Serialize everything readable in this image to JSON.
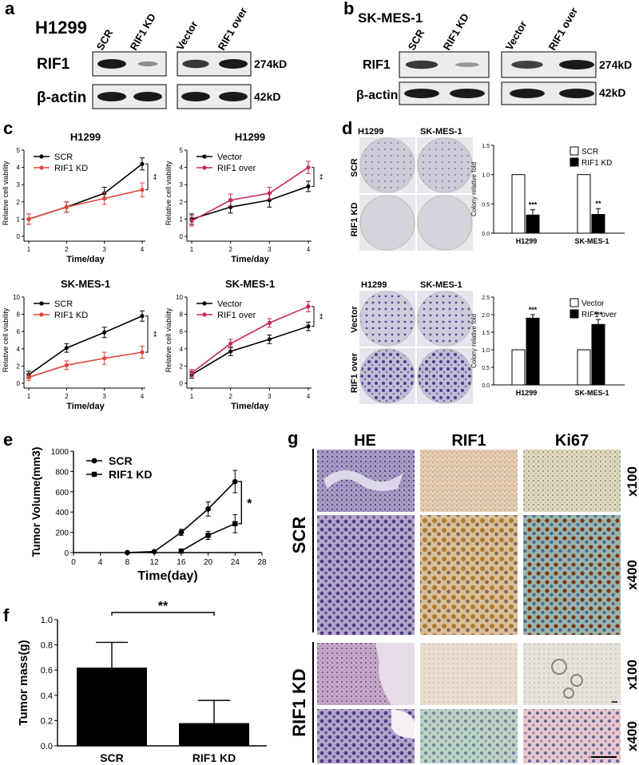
{
  "colors": {
    "black": "#000000",
    "red": "#e0463a",
    "magenta": "#c8265a",
    "blot": "#1a1a1a"
  },
  "panel_a": {
    "letter": "a",
    "cell_line": "H1299",
    "lanes": [
      "SCR",
      "RIF1 KD",
      "Vector",
      "RIF1 over"
    ],
    "rows": [
      "RIF1",
      "β-actin"
    ],
    "sizes": [
      "274kD",
      "42kD"
    ],
    "rif1_band": [
      1.0,
      0.25,
      0.8,
      1.0
    ],
    "actin_band": [
      1.0,
      1.0,
      1.0,
      1.0
    ]
  },
  "panel_b": {
    "letter": "b",
    "cell_line": "SK-MES-1",
    "lanes": [
      "SCR",
      "RIF1 KD",
      "Vector",
      "RIF1 over"
    ],
    "rows": [
      "RIF1",
      "β-actin"
    ],
    "sizes": [
      "274kD",
      "42kD"
    ],
    "rif1_band": [
      0.8,
      0.2,
      0.75,
      1.0
    ],
    "actin_band": [
      1.0,
      1.0,
      1.0,
      1.0
    ]
  },
  "panel_c": {
    "letter": "c"
  },
  "panel_d": {
    "letter": "d",
    "kd_cols": [
      "H1299",
      "SK-MES-1"
    ],
    "kd_rows": [
      "SCR",
      "RIF1 KD"
    ],
    "over_cols": [
      "H1299",
      "SK-MES-1"
    ],
    "over_rows": [
      "Vector",
      "RIF1 over"
    ]
  },
  "panel_e": {
    "letter": "e"
  },
  "panel_f": {
    "letter": "f"
  },
  "panel_g": {
    "letter": "g",
    "columns": [
      "HE",
      "RIF1",
      "Ki67"
    ],
    "groups": [
      "SCR",
      "RIF1 KD"
    ],
    "magnifications": [
      "x100",
      "x400",
      "x100",
      "x400"
    ]
  },
  "chart_data": [
    {
      "id": "c1",
      "type": "line",
      "title": "H1299",
      "xlabel": "Time/day",
      "ylabel": "Relative cell viability",
      "x": [
        1,
        2,
        3,
        4
      ],
      "xlim": [
        1,
        4
      ],
      "ylim": [
        0,
        5
      ],
      "yticks": [
        0,
        1,
        2,
        3,
        4,
        5
      ],
      "series": [
        {
          "name": "SCR",
          "color": "#000000",
          "values": [
            1.0,
            1.7,
            2.5,
            4.2
          ],
          "err": [
            0.3,
            0.3,
            0.35,
            0.35
          ]
        },
        {
          "name": "RIF1 KD",
          "color": "#e0463a",
          "values": [
            1.0,
            1.7,
            2.2,
            2.7
          ],
          "err": [
            0.3,
            0.3,
            0.35,
            0.4
          ]
        }
      ],
      "annotation": "**"
    },
    {
      "id": "c2",
      "type": "line",
      "title": "H1299",
      "xlabel": "Time/day",
      "ylabel": "Relative cell viability",
      "x": [
        1,
        2,
        3,
        4
      ],
      "xlim": [
        1,
        4
      ],
      "ylim": [
        0,
        5
      ],
      "yticks": [
        0,
        1,
        2,
        3,
        4,
        5
      ],
      "series": [
        {
          "name": "Vector",
          "color": "#000000",
          "values": [
            1.0,
            1.7,
            2.1,
            2.9
          ],
          "err": [
            0.3,
            0.35,
            0.4,
            0.3
          ]
        },
        {
          "name": "RIF1 over",
          "color": "#c8265a",
          "values": [
            0.9,
            2.1,
            2.5,
            4.0
          ],
          "err": [
            0.3,
            0.35,
            0.35,
            0.35
          ]
        }
      ],
      "annotation": "**"
    },
    {
      "id": "c3",
      "type": "line",
      "title": "SK-MES-1",
      "xlabel": "Time/day",
      "ylabel": "Relative cell viability",
      "x": [
        1,
        2,
        3,
        4
      ],
      "xlim": [
        1,
        4
      ],
      "ylim": [
        0,
        10
      ],
      "yticks": [
        0,
        2,
        4,
        6,
        8,
        10
      ],
      "series": [
        {
          "name": "SCR",
          "color": "#000000",
          "values": [
            1.0,
            4.1,
            5.9,
            7.8
          ],
          "err": [
            0.4,
            0.5,
            0.6,
            0.6
          ]
        },
        {
          "name": "RIF1 KD",
          "color": "#e0463a",
          "values": [
            0.7,
            2.1,
            2.9,
            3.6
          ],
          "err": [
            0.4,
            0.5,
            0.7,
            0.7
          ]
        }
      ],
      "annotation": "**"
    },
    {
      "id": "c4",
      "type": "line",
      "title": "SK-MES-1",
      "xlabel": "Time/day",
      "ylabel": "Relative cell viability",
      "x": [
        1,
        2,
        3,
        4
      ],
      "xlim": [
        1,
        4
      ],
      "ylim": [
        0,
        10
      ],
      "yticks": [
        0,
        2,
        4,
        6,
        8,
        10
      ],
      "series": [
        {
          "name": "Vector",
          "color": "#000000",
          "values": [
            1.0,
            3.7,
            5.1,
            6.6
          ],
          "err": [
            0.4,
            0.5,
            0.5,
            0.5
          ]
        },
        {
          "name": "RIF1 over",
          "color": "#c8265a",
          "values": [
            1.2,
            4.6,
            7.0,
            8.9
          ],
          "err": [
            0.4,
            0.5,
            0.5,
            0.6
          ]
        }
      ],
      "annotation": "**"
    },
    {
      "id": "d1",
      "type": "bar",
      "ylabel": "Colony relative fold",
      "categories": [
        "H1299",
        "SK-MES-1"
      ],
      "ylim": [
        0,
        1.5
      ],
      "yticks": [
        "0.0",
        "0.5",
        "1.0",
        "1.5"
      ],
      "series": [
        {
          "name": "SCR",
          "fill": "#ffffff",
          "values": [
            1.0,
            1.0
          ],
          "err": [
            0,
            0
          ]
        },
        {
          "name": "RIF1 KD",
          "fill": "#000000",
          "values": [
            0.31,
            0.32
          ],
          "err": [
            0.09,
            0.1
          ]
        }
      ],
      "stars": [
        "***",
        "**"
      ]
    },
    {
      "id": "d2",
      "type": "bar",
      "ylabel": "Colony relative fold",
      "categories": [
        "H1299",
        "SK-MES-1"
      ],
      "ylim": [
        0,
        2.5
      ],
      "yticks": [
        "0.0",
        "0.5",
        "1.0",
        "1.5",
        "2.0",
        "2.5"
      ],
      "series": [
        {
          "name": "Vector",
          "fill": "#ffffff",
          "values": [
            1.0,
            1.0
          ],
          "err": [
            0,
            0
          ]
        },
        {
          "name": "RIF1 over",
          "fill": "#000000",
          "values": [
            1.9,
            1.72
          ],
          "err": [
            0.1,
            0.14
          ]
        }
      ],
      "stars": [
        "***",
        "***"
      ]
    },
    {
      "id": "e",
      "type": "line",
      "xlabel": "Time(day)",
      "ylabel": "Tumor Volume(mm3)",
      "xlim": [
        0,
        28
      ],
      "xticks": [
        0,
        4,
        8,
        12,
        16,
        20,
        24,
        28
      ],
      "ylim": [
        0,
        1000
      ],
      "yticks": [
        0,
        200,
        400,
        600,
        800,
        1000
      ],
      "series": [
        {
          "name": "SCR",
          "marker": "circle",
          "x": [
            8,
            12,
            16,
            20,
            24
          ],
          "values": [
            0,
            10,
            200,
            430,
            700
          ],
          "err": [
            0,
            5,
            30,
            70,
            110
          ]
        },
        {
          "name": "RIF1 KD",
          "marker": "square",
          "x": [
            16,
            20,
            24
          ],
          "values": [
            15,
            170,
            285
          ],
          "err": [
            5,
            40,
            90
          ]
        }
      ],
      "annotation": "*"
    },
    {
      "id": "f",
      "type": "bar",
      "ylabel": "Tumor mass(g)",
      "categories": [
        "SCR",
        "RIF1 KD"
      ],
      "ylim": [
        0,
        1.0
      ],
      "yticks": [
        "0.0",
        "0.2",
        "0.4",
        "0.6",
        "0.8",
        "1.0"
      ],
      "values": [
        0.62,
        0.18
      ],
      "err": [
        0.2,
        0.18
      ],
      "annotation": "**"
    }
  ]
}
